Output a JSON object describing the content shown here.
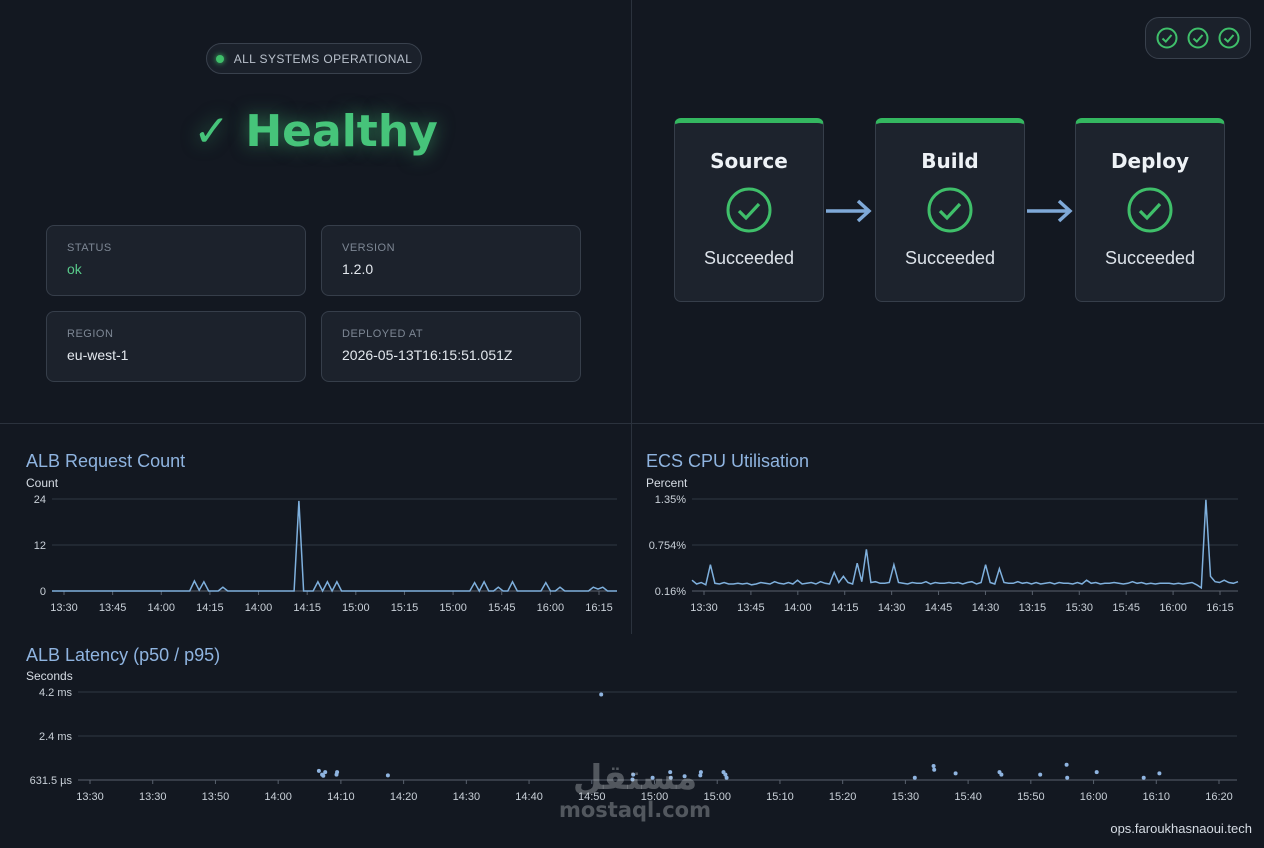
{
  "status_banner": {
    "text": "ALL SYSTEMS OPERATIONAL"
  },
  "health": {
    "headline": "✓ Healthy"
  },
  "info_cards": [
    {
      "label": "STATUS",
      "value": "ok"
    },
    {
      "label": "VERSION",
      "value": "1.2.0"
    },
    {
      "label": "REGION",
      "value": "eu-west-1"
    },
    {
      "label": "DEPLOYED AT",
      "value": "2026-05-13T16:15:51.051Z"
    }
  ],
  "pipeline": {
    "checks_count": 3,
    "stages": [
      {
        "name": "Source",
        "status": "Succeeded"
      },
      {
        "name": "Build",
        "status": "Succeeded"
      },
      {
        "name": "Deploy",
        "status": "Succeeded"
      }
    ]
  },
  "colors": {
    "accent_green": "#3fbf6a",
    "line_blue": "#7fb0dd",
    "title_blue": "#8fb4e0",
    "background": "#131821"
  },
  "charts": {
    "alb_requests": {
      "title": "ALB Request Count",
      "unit": "Count",
      "ticks_y": [
        "24",
        "12",
        "0"
      ],
      "ticks_x": [
        "13:30",
        "13:45",
        "14:00",
        "14:15",
        "14:00",
        "14:15",
        "15:00",
        "15:15",
        "15:00",
        "15:45",
        "16:00",
        "16:15"
      ]
    },
    "ecs_cpu": {
      "title": "ECS CPU Utilisation",
      "unit": "Percent",
      "ticks_y": [
        "1.35%",
        "0.754%",
        "0.16%"
      ],
      "ticks_x": [
        "13:30",
        "13:45",
        "14:00",
        "14:15",
        "14:30",
        "14:45",
        "14:30",
        "13:15",
        "15:30",
        "15:45",
        "16:00",
        "16:15"
      ]
    },
    "alb_latency": {
      "title": "ALB Latency (p50 / p95)",
      "unit": "Seconds",
      "ticks_y": [
        "4.2 ms",
        "2.4 ms",
        "631.5 µs"
      ],
      "ticks_x": [
        "13:30",
        "13:30",
        "13:50",
        "14:00",
        "14:10",
        "14:20",
        "14:30",
        "14:40",
        "14:50",
        "15:00",
        "15:00",
        "15:10",
        "15:20",
        "15:30",
        "15:40",
        "15:50",
        "16:00",
        "16:10",
        "16:20"
      ]
    }
  },
  "chart_data": [
    {
      "type": "line",
      "title": "ALB Request Count",
      "ylabel": "Count",
      "ylim": [
        0,
        24
      ],
      "x": [
        0,
        1,
        2,
        3,
        4,
        5,
        6,
        7,
        8,
        9,
        10,
        11,
        12,
        13,
        14,
        15,
        16,
        17,
        18,
        19,
        20,
        21,
        22,
        23,
        24,
        25,
        26,
        27,
        28,
        29,
        30,
        31,
        32,
        33,
        34,
        35,
        36,
        37,
        38,
        39,
        40,
        41,
        42,
        43,
        44,
        45,
        46,
        47,
        48,
        49,
        50,
        51,
        52,
        53,
        54,
        55,
        56,
        57,
        58,
        59,
        60,
        61,
        62,
        63,
        64,
        65,
        66,
        67,
        68,
        69,
        70,
        71,
        72,
        73,
        74,
        75,
        76,
        77,
        78,
        79,
        80,
        81,
        82,
        83,
        84,
        85,
        86,
        87,
        88,
        89,
        90,
        91,
        92,
        93,
        94,
        95,
        96,
        97,
        98,
        99,
        100,
        101,
        102,
        103,
        104,
        105,
        106,
        107,
        108,
        109,
        110,
        111,
        112,
        113,
        114,
        115,
        116,
        117,
        118,
        119
      ],
      "series": [
        {
          "values": [
            0,
            0,
            0,
            0,
            0,
            0,
            0,
            0,
            0,
            0,
            0,
            0,
            0,
            0,
            0,
            0,
            0,
            0,
            0,
            0,
            0,
            0,
            0,
            0,
            0,
            0,
            0,
            0,
            0,
            0,
            2.6,
            0.2,
            2.4,
            0,
            0,
            0,
            1,
            0,
            0,
            0,
            0,
            0,
            0,
            0,
            0,
            0,
            0,
            0,
            0,
            0,
            0,
            0,
            23.5,
            0,
            0,
            0,
            2.4,
            0,
            2.4,
            0,
            2.4,
            0,
            0,
            0,
            0,
            0,
            0,
            0,
            0,
            0,
            0,
            0,
            0,
            0,
            0,
            0,
            0,
            0,
            0,
            0,
            0,
            0,
            0,
            0,
            0,
            0,
            0,
            0,
            0,
            2.2,
            0,
            2.4,
            0,
            0,
            1,
            0,
            0,
            2.4,
            0,
            0,
            0,
            0,
            0,
            0,
            2.2,
            0,
            0,
            1,
            0,
            0,
            0,
            0,
            0,
            0,
            1,
            0.5,
            1,
            0,
            0,
            0
          ]
        }
      ]
    },
    {
      "type": "line",
      "title": "ECS CPU Utilisation",
      "ylabel": "Percent",
      "ylim": [
        0.16,
        1.35
      ],
      "x": [
        0,
        1,
        2,
        3,
        4,
        5,
        6,
        7,
        8,
        9,
        10,
        11,
        12,
        13,
        14,
        15,
        16,
        17,
        18,
        19,
        20,
        21,
        22,
        23,
        24,
        25,
        26,
        27,
        28,
        29,
        30,
        31,
        32,
        33,
        34,
        35,
        36,
        37,
        38,
        39,
        40,
        41,
        42,
        43,
        44,
        45,
        46,
        47,
        48,
        49,
        50,
        51,
        52,
        53,
        54,
        55,
        56,
        57,
        58,
        59,
        60,
        61,
        62,
        63,
        64,
        65,
        66,
        67,
        68,
        69,
        70,
        71,
        72,
        73,
        74,
        75,
        76,
        77,
        78,
        79,
        80,
        81,
        82,
        83,
        84,
        85,
        86,
        87,
        88,
        89,
        90,
        91,
        92,
        93,
        94,
        95,
        96,
        97,
        98,
        99,
        100,
        101,
        102,
        103,
        104,
        105,
        106,
        107,
        108,
        109,
        110,
        111,
        112,
        113,
        114,
        115,
        116,
        117,
        118,
        119
      ],
      "series": [
        {
          "values": [
            0.3,
            0.25,
            0.27,
            0.24,
            0.5,
            0.26,
            0.25,
            0.27,
            0.25,
            0.25,
            0.26,
            0.25,
            0.26,
            0.24,
            0.25,
            0.27,
            0.26,
            0.25,
            0.28,
            0.26,
            0.25,
            0.27,
            0.25,
            0.3,
            0.25,
            0.26,
            0.27,
            0.25,
            0.28,
            0.26,
            0.25,
            0.4,
            0.27,
            0.35,
            0.27,
            0.25,
            0.52,
            0.28,
            0.7,
            0.27,
            0.28,
            0.26,
            0.26,
            0.27,
            0.5,
            0.27,
            0.26,
            0.25,
            0.27,
            0.26,
            0.26,
            0.28,
            0.25,
            0.27,
            0.26,
            0.26,
            0.27,
            0.26,
            0.27,
            0.25,
            0.27,
            0.28,
            0.25,
            0.27,
            0.5,
            0.27,
            0.25,
            0.45,
            0.27,
            0.26,
            0.26,
            0.28,
            0.26,
            0.27,
            0.25,
            0.27,
            0.25,
            0.26,
            0.27,
            0.25,
            0.27,
            0.26,
            0.26,
            0.25,
            0.27,
            0.25,
            0.3,
            0.26,
            0.27,
            0.25,
            0.26,
            0.26,
            0.27,
            0.26,
            0.25,
            0.26,
            0.28,
            0.26,
            0.27,
            0.25,
            0.26,
            0.25,
            0.26,
            0.26,
            0.26,
            0.25,
            0.26,
            0.25,
            0.26,
            0.27,
            0.24,
            0.2,
            1.34,
            0.35,
            0.28,
            0.27,
            0.3,
            0.27,
            0.26,
            0.28
          ]
        }
      ]
    },
    {
      "type": "scatter",
      "title": "ALB Latency (p50 / p95)",
      "ylabel": "Seconds",
      "ylim": [
        0.6315,
        4.2
      ],
      "x_unit": "minutes after 13:30",
      "series": [
        {
          "points": [
            [
              36.5,
              1.0
            ],
            [
              37,
              0.85
            ],
            [
              37.2,
              0.8
            ],
            [
              37.5,
              0.95
            ],
            [
              39.3,
              0.85
            ],
            [
              39.4,
              0.95
            ],
            [
              47.5,
              0.82
            ],
            [
              81.5,
              4.1
            ],
            [
              86.5,
              0.65
            ],
            [
              86.6,
              0.85
            ],
            [
              89.7,
              0.72
            ],
            [
              92.5,
              0.95
            ],
            [
              92.6,
              0.72
            ],
            [
              94.8,
              0.78
            ],
            [
              97.3,
              0.82
            ],
            [
              97.4,
              0.95
            ],
            [
              101,
              0.95
            ],
            [
              101.3,
              0.85
            ],
            [
              101.5,
              0.72
            ],
            [
              131.5,
              0.72
            ],
            [
              134.5,
              1.2
            ],
            [
              134.6,
              1.05
            ],
            [
              138,
              0.9
            ],
            [
              145,
              0.95
            ],
            [
              145.3,
              0.85
            ],
            [
              151.5,
              0.85
            ],
            [
              155.7,
              1.25
            ],
            [
              155.8,
              0.72
            ],
            [
              160.5,
              0.95
            ],
            [
              168,
              0.72
            ],
            [
              170.5,
              0.9
            ]
          ]
        }
      ]
    }
  ],
  "footer": {
    "host": "ops.faroukhasnaoui.tech"
  },
  "watermark": {
    "arabic": "مستقل",
    "latin": "mostaql.com"
  }
}
